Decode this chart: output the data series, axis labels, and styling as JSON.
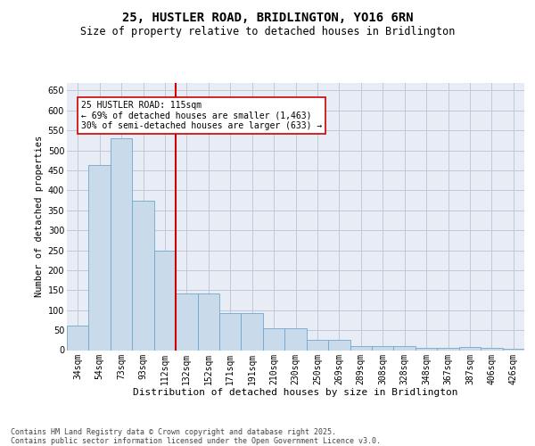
{
  "title_line1": "25, HUSTLER ROAD, BRIDLINGTON, YO16 6RN",
  "title_line2": "Size of property relative to detached houses in Bridlington",
  "xlabel": "Distribution of detached houses by size in Bridlington",
  "ylabel": "Number of detached properties",
  "categories": [
    "34sqm",
    "54sqm",
    "73sqm",
    "93sqm",
    "112sqm",
    "132sqm",
    "152sqm",
    "171sqm",
    "191sqm",
    "210sqm",
    "230sqm",
    "250sqm",
    "269sqm",
    "289sqm",
    "308sqm",
    "328sqm",
    "348sqm",
    "367sqm",
    "387sqm",
    "406sqm",
    "426sqm"
  ],
  "values": [
    62,
    463,
    530,
    375,
    250,
    142,
    142,
    92,
    92,
    55,
    55,
    25,
    25,
    10,
    10,
    10,
    5,
    5,
    8,
    5,
    4
  ],
  "bar_color": "#c9daea",
  "bar_edge_color": "#6fa8d0",
  "grid_color": "#c0c8d8",
  "background_color": "#e8edf5",
  "vline_color": "#cc0000",
  "vline_position": 4.5,
  "annotation_text": "25 HUSTLER ROAD: 115sqm\n← 69% of detached houses are smaller (1,463)\n30% of semi-detached houses are larger (633) →",
  "annotation_box_facecolor": "#ffffff",
  "annotation_box_edgecolor": "#cc0000",
  "ylim": [
    0,
    670
  ],
  "yticks": [
    0,
    50,
    100,
    150,
    200,
    250,
    300,
    350,
    400,
    450,
    500,
    550,
    600,
    650
  ],
  "footnote": "Contains HM Land Registry data © Crown copyright and database right 2025.\nContains public sector information licensed under the Open Government Licence v3.0.",
  "title_fontsize": 10,
  "subtitle_fontsize": 8.5,
  "xlabel_fontsize": 8,
  "ylabel_fontsize": 7.5,
  "tick_fontsize": 7,
  "annotation_fontsize": 7,
  "footnote_fontsize": 6
}
